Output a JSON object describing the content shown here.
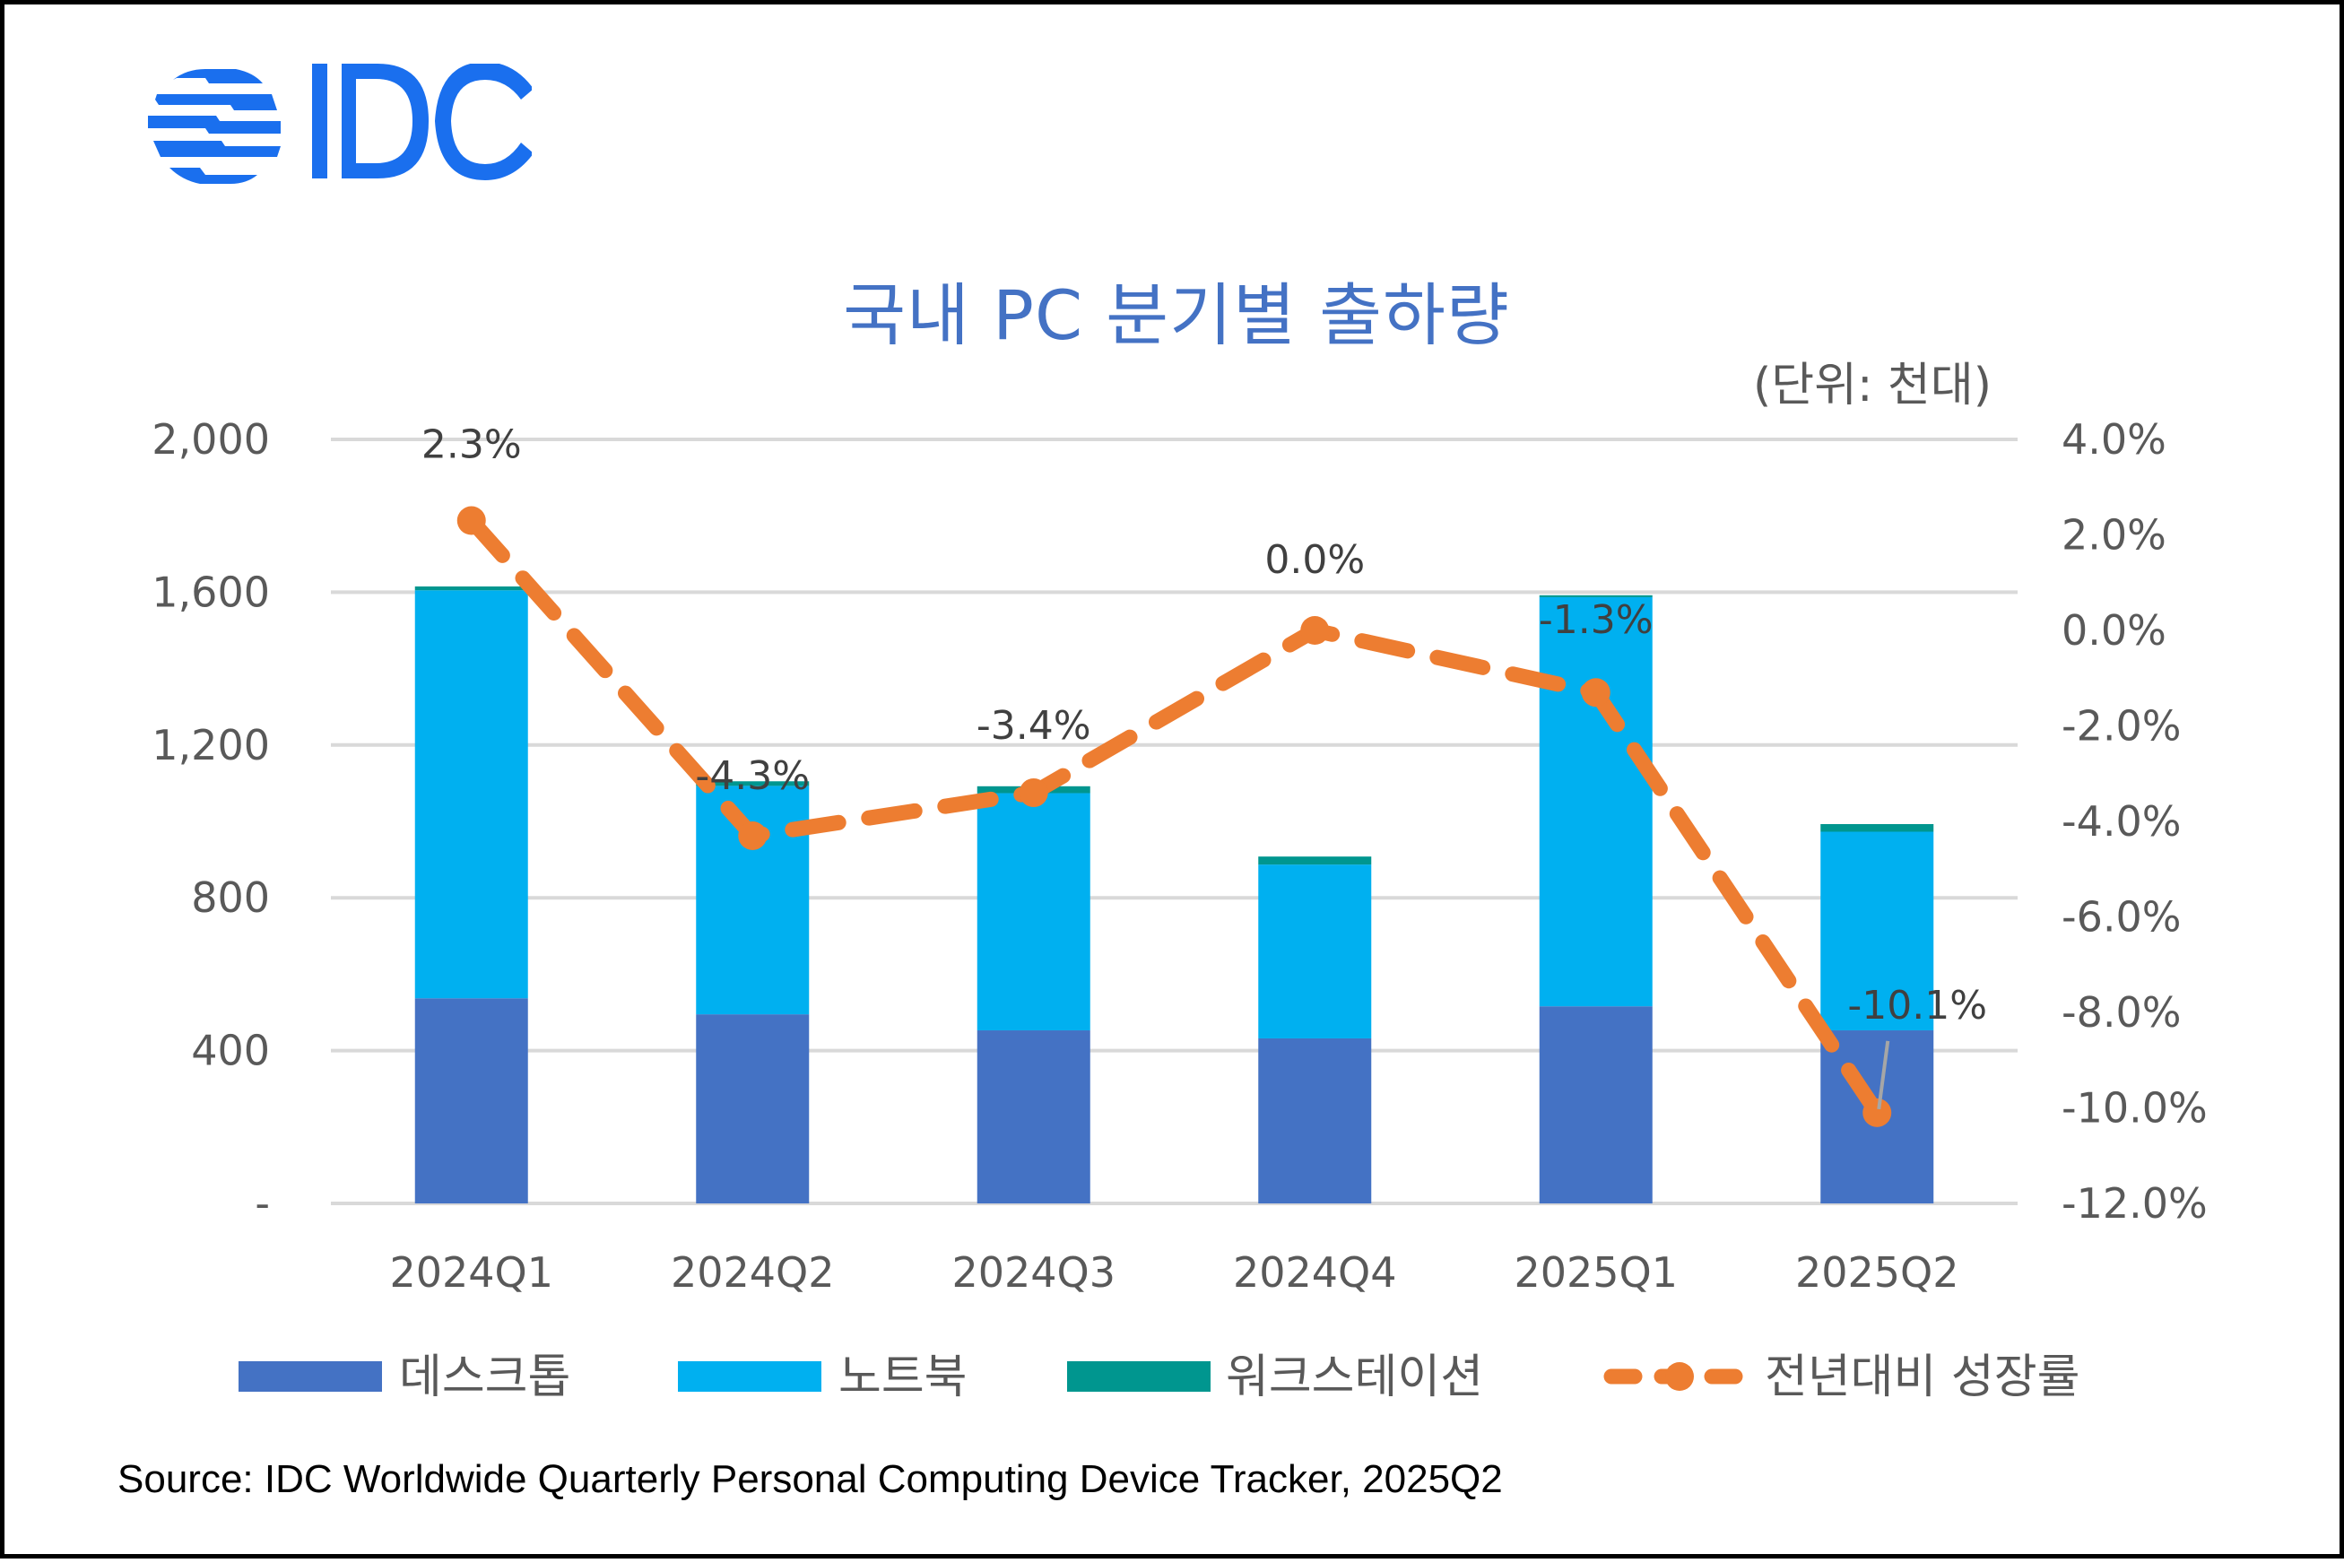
{
  "header": {
    "logo_text": "IDC",
    "title": "국내 PC 분기별 출하량",
    "unit": "(단위: 천대)"
  },
  "chart_data": {
    "type": "bar",
    "stacked": true,
    "title": "국내 PC 분기별 출하량",
    "unit_label": "(단위: 천대)",
    "categories": [
      "2024Q1",
      "2024Q2",
      "2024Q3",
      "2024Q4",
      "2025Q1",
      "2025Q2"
    ],
    "series": [
      {
        "name": "데스크톱",
        "type": "bar",
        "axis": "left",
        "color": "#4472C4",
        "values": [
          537,
          495,
          453,
          432,
          516,
          453
        ]
      },
      {
        "name": "노트북",
        "type": "bar",
        "axis": "left",
        "color": "#00B0F0",
        "values": [
          1068,
          598,
          621,
          455,
          1071,
          520
        ]
      },
      {
        "name": "워크스테이션",
        "type": "bar",
        "axis": "left",
        "color": "#00968F",
        "values": [
          10,
          12,
          18,
          21,
          5,
          20
        ]
      },
      {
        "name": "전년대비 성장률",
        "type": "line",
        "axis": "right",
        "color": "#ED7D31",
        "style": "dashed-with-markers",
        "values": [
          2.3,
          -4.3,
          -3.4,
          0.0,
          -1.3,
          -10.1
        ],
        "labels": [
          "2.3%",
          "-4.3%",
          "-3.4%",
          "0.0%",
          "-1.3%",
          "-10.1%"
        ]
      }
    ],
    "y_left": {
      "min": 0,
      "max": 2000,
      "step": 400,
      "ticks": [
        "-",
        "400",
        "800",
        "1,200",
        "1,600",
        "2,000"
      ]
    },
    "y_right": {
      "min": -12.0,
      "max": 4.0,
      "step": 2.0,
      "ticks": [
        "-12.0%",
        "-10.0%",
        "-8.0%",
        "-6.0%",
        "-4.0%",
        "-2.0%",
        "0.0%",
        "2.0%",
        "4.0%"
      ]
    },
    "grid": true,
    "legend_position": "bottom"
  },
  "footer": {
    "source": "Source: IDC Worldwide Quarterly Personal Computing Device Tracker, 2025Q2"
  }
}
